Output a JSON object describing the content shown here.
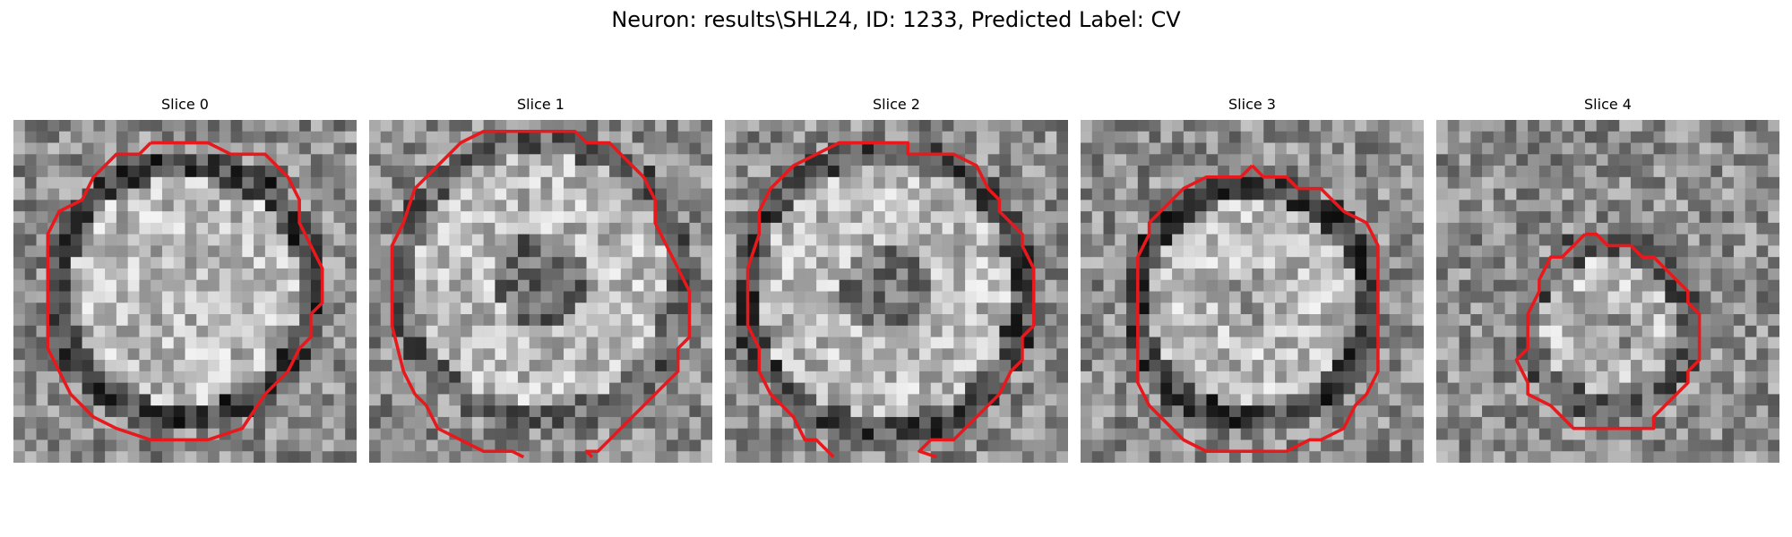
{
  "figure": {
    "title": "Neuron: results\\SHL24, ID: 1233, Predicted Label: CV"
  },
  "panels": [
    {
      "title": "Slice 0"
    },
    {
      "title": "Slice 1"
    },
    {
      "title": "Slice 2"
    },
    {
      "title": "Slice 3"
    },
    {
      "title": "Slice 4"
    }
  ],
  "colors": {
    "outline": "#e8191c",
    "background": "#ffffff",
    "image_colormap": "gray"
  }
}
